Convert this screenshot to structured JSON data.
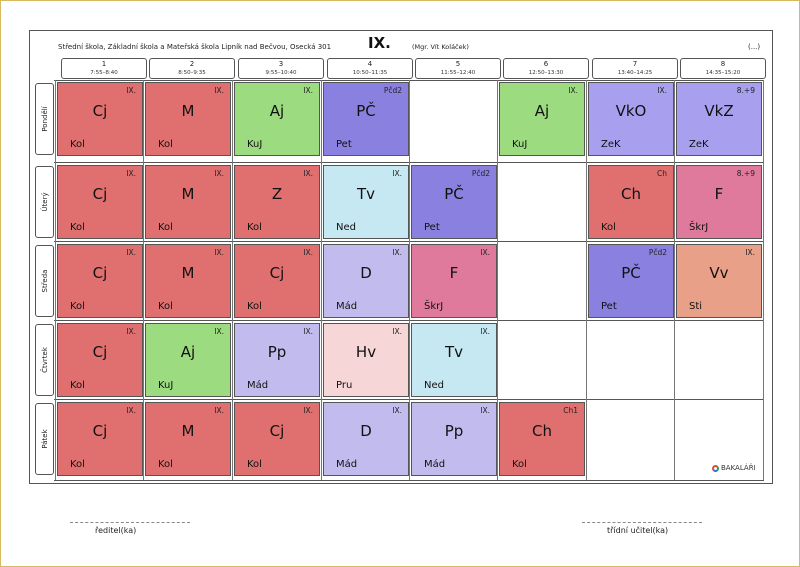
{
  "header": {
    "school": "Střední škola, Základní škola a Mateřská škola Lipník nad Bečvou, Osecká 301",
    "class_name": "IX.",
    "teacher": "(Mgr. Vít Koláček)",
    "more": "(...)"
  },
  "periods": [
    {
      "num": "1",
      "time": "7:55–8:40"
    },
    {
      "num": "2",
      "time": "8:50–9:35"
    },
    {
      "num": "3",
      "time": "9:55–10:40"
    },
    {
      "num": "4",
      "time": "10:50–11:35"
    },
    {
      "num": "5",
      "time": "11:55–12:40"
    },
    {
      "num": "6",
      "time": "12:50–13:30"
    },
    {
      "num": "7",
      "time": "13:40–14:25"
    },
    {
      "num": "8",
      "time": "14:35–15:20"
    }
  ],
  "days": [
    {
      "label": "Pondělí",
      "lessons": [
        {
          "p": 0,
          "subject": "Cj",
          "teacher": "Kol",
          "group": "IX.",
          "color": "#e07070"
        },
        {
          "p": 1,
          "subject": "M",
          "teacher": "Kol",
          "group": "IX.",
          "color": "#e07070"
        },
        {
          "p": 2,
          "subject": "Aj",
          "teacher": "KuJ",
          "group": "IX.",
          "color": "#9cdb80"
        },
        {
          "p": 3,
          "subject": "PČ",
          "teacher": "Pet",
          "group": "Pčd2",
          "color": "#8a80e0"
        },
        {
          "p": 5,
          "subject": "Aj",
          "teacher": "KuJ",
          "group": "IX.",
          "color": "#9cdb80"
        },
        {
          "p": 6,
          "subject": "VkO",
          "teacher": "ZeK",
          "group": "IX.",
          "color": "#a8a0ee"
        },
        {
          "p": 7,
          "subject": "VkZ",
          "teacher": "ZeK",
          "group": "8.+9",
          "color": "#a8a0ee"
        }
      ]
    },
    {
      "label": "Úterý",
      "lessons": [
        {
          "p": 0,
          "subject": "Cj",
          "teacher": "Kol",
          "group": "IX.",
          "color": "#e07070"
        },
        {
          "p": 1,
          "subject": "M",
          "teacher": "Kol",
          "group": "IX.",
          "color": "#e07070"
        },
        {
          "p": 2,
          "subject": "Z",
          "teacher": "Kol",
          "group": "IX.",
          "color": "#e07070"
        },
        {
          "p": 3,
          "subject": "Tv",
          "teacher": "Ned",
          "group": "IX.",
          "color": "#c6e8f2"
        },
        {
          "p": 4,
          "subject": "PČ",
          "teacher": "Pet",
          "group": "Pčd2",
          "color": "#8a80e0"
        },
        {
          "p": 6,
          "subject": "Ch",
          "teacher": "Kol",
          "group": "Ch",
          "color": "#e07070"
        },
        {
          "p": 7,
          "subject": "F",
          "teacher": "ŠkrJ",
          "group": "8.+9",
          "color": "#e07a9c"
        }
      ]
    },
    {
      "label": "Středa",
      "lessons": [
        {
          "p": 0,
          "subject": "Cj",
          "teacher": "Kol",
          "group": "IX.",
          "color": "#e07070"
        },
        {
          "p": 1,
          "subject": "M",
          "teacher": "Kol",
          "group": "IX.",
          "color": "#e07070"
        },
        {
          "p": 2,
          "subject": "Cj",
          "teacher": "Kol",
          "group": "IX.",
          "color": "#e07070"
        },
        {
          "p": 3,
          "subject": "D",
          "teacher": "Mád",
          "group": "IX.",
          "color": "#c2bcee"
        },
        {
          "p": 4,
          "subject": "F",
          "teacher": "ŠkrJ",
          "group": "IX.",
          "color": "#e07a9c"
        },
        {
          "p": 6,
          "subject": "PČ",
          "teacher": "Pet",
          "group": "Pčd2",
          "color": "#8a80e0"
        },
        {
          "p": 7,
          "subject": "Vv",
          "teacher": "Sti",
          "group": "IX.",
          "color": "#e8a088"
        }
      ]
    },
    {
      "label": "Čtvrtek",
      "lessons": [
        {
          "p": 0,
          "subject": "Cj",
          "teacher": "Kol",
          "group": "IX.",
          "color": "#e07070"
        },
        {
          "p": 1,
          "subject": "Aj",
          "teacher": "KuJ",
          "group": "IX.",
          "color": "#9cdb80"
        },
        {
          "p": 2,
          "subject": "Pp",
          "teacher": "Mád",
          "group": "IX.",
          "color": "#c2bcee"
        },
        {
          "p": 3,
          "subject": "Hv",
          "teacher": "Pru",
          "group": "IX.",
          "color": "#f6d6d6"
        },
        {
          "p": 4,
          "subject": "Tv",
          "teacher": "Ned",
          "group": "IX.",
          "color": "#c6e8f2"
        }
      ]
    },
    {
      "label": "Pátek",
      "lessons": [
        {
          "p": 0,
          "subject": "Cj",
          "teacher": "Kol",
          "group": "IX.",
          "color": "#e07070"
        },
        {
          "p": 1,
          "subject": "M",
          "teacher": "Kol",
          "group": "IX.",
          "color": "#e07070"
        },
        {
          "p": 2,
          "subject": "Cj",
          "teacher": "Kol",
          "group": "IX.",
          "color": "#e07070"
        },
        {
          "p": 3,
          "subject": "D",
          "teacher": "Mád",
          "group": "IX.",
          "color": "#c2bcee"
        },
        {
          "p": 4,
          "subject": "Pp",
          "teacher": "Mád",
          "group": "IX.",
          "color": "#c2bcee"
        },
        {
          "p": 5,
          "subject": "Ch",
          "teacher": "Kol",
          "group": "Ch1",
          "color": "#e07070"
        }
      ]
    }
  ],
  "logo": {
    "icon": "bakalari-logo-icon",
    "text": "BAKALÁŘI"
  },
  "signatures": {
    "left": "ředitel(ka)",
    "right": "třídní učitel(ka)"
  }
}
